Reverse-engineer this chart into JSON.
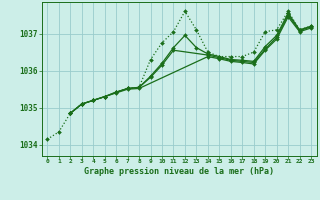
{
  "background_color": "#cceee8",
  "grid_color": "#99cccc",
  "line_color": "#1a6e1a",
  "marker_color": "#1a6e1a",
  "title": "Graphe pression niveau de la mer (hPa)",
  "xlim": [
    -0.5,
    23.5
  ],
  "ylim": [
    1033.7,
    1037.85
  ],
  "yticks": [
    1034,
    1035,
    1036,
    1037
  ],
  "xticks": [
    0,
    1,
    2,
    3,
    4,
    5,
    6,
    7,
    8,
    9,
    10,
    11,
    12,
    13,
    14,
    15,
    16,
    17,
    18,
    19,
    20,
    21,
    22,
    23
  ],
  "series": [
    {
      "x": [
        0,
        1,
        2,
        3,
        4,
        5,
        6,
        7,
        8,
        9,
        10,
        11,
        12,
        13,
        14,
        15,
        16,
        17,
        18,
        19,
        20,
        21,
        22,
        23
      ],
      "y": [
        1034.15,
        1034.35,
        1034.85,
        1035.1,
        1035.2,
        1035.3,
        1035.42,
        1035.52,
        1035.55,
        1036.3,
        1036.75,
        1037.05,
        1037.6,
        1037.1,
        1036.5,
        1036.38,
        1036.38,
        1036.38,
        1036.5,
        1037.05,
        1037.1,
        1037.6,
        1037.1,
        1037.2
      ],
      "linestyle": "dotted",
      "linewidth": 0.9,
      "markersize": 2.0
    },
    {
      "x": [
        2,
        3,
        4,
        5,
        6,
        7,
        8,
        9,
        10,
        11,
        12,
        13,
        14,
        15,
        16,
        17,
        18,
        19,
        20,
        21,
        22,
        23
      ],
      "y": [
        1034.85,
        1035.1,
        1035.2,
        1035.3,
        1035.42,
        1035.52,
        1035.55,
        1035.85,
        1036.2,
        1036.62,
        1036.95,
        1036.62,
        1036.45,
        1036.38,
        1036.3,
        1036.28,
        1036.25,
        1036.65,
        1036.95,
        1037.55,
        1037.1,
        1037.2
      ],
      "linestyle": "solid",
      "linewidth": 0.9,
      "markersize": 2.0
    },
    {
      "x": [
        2,
        3,
        4,
        5,
        6,
        7,
        8,
        9,
        10,
        11,
        14,
        15,
        16,
        17,
        18,
        19,
        20,
        21,
        22,
        23
      ],
      "y": [
        1034.85,
        1035.1,
        1035.2,
        1035.3,
        1035.42,
        1035.52,
        1035.55,
        1035.82,
        1036.15,
        1036.55,
        1036.42,
        1036.35,
        1036.28,
        1036.25,
        1036.22,
        1036.58,
        1036.9,
        1037.5,
        1037.08,
        1037.18
      ],
      "linestyle": "solid",
      "linewidth": 0.9,
      "markersize": 2.0
    },
    {
      "x": [
        2,
        3,
        4,
        5,
        6,
        7,
        8,
        14,
        15,
        16,
        17,
        18,
        19,
        20,
        21,
        22,
        23
      ],
      "y": [
        1034.85,
        1035.1,
        1035.2,
        1035.3,
        1035.4,
        1035.5,
        1035.52,
        1036.38,
        1036.32,
        1036.25,
        1036.22,
        1036.18,
        1036.55,
        1036.85,
        1037.45,
        1037.05,
        1037.15
      ],
      "linestyle": "solid",
      "linewidth": 0.9,
      "markersize": 2.0
    }
  ]
}
